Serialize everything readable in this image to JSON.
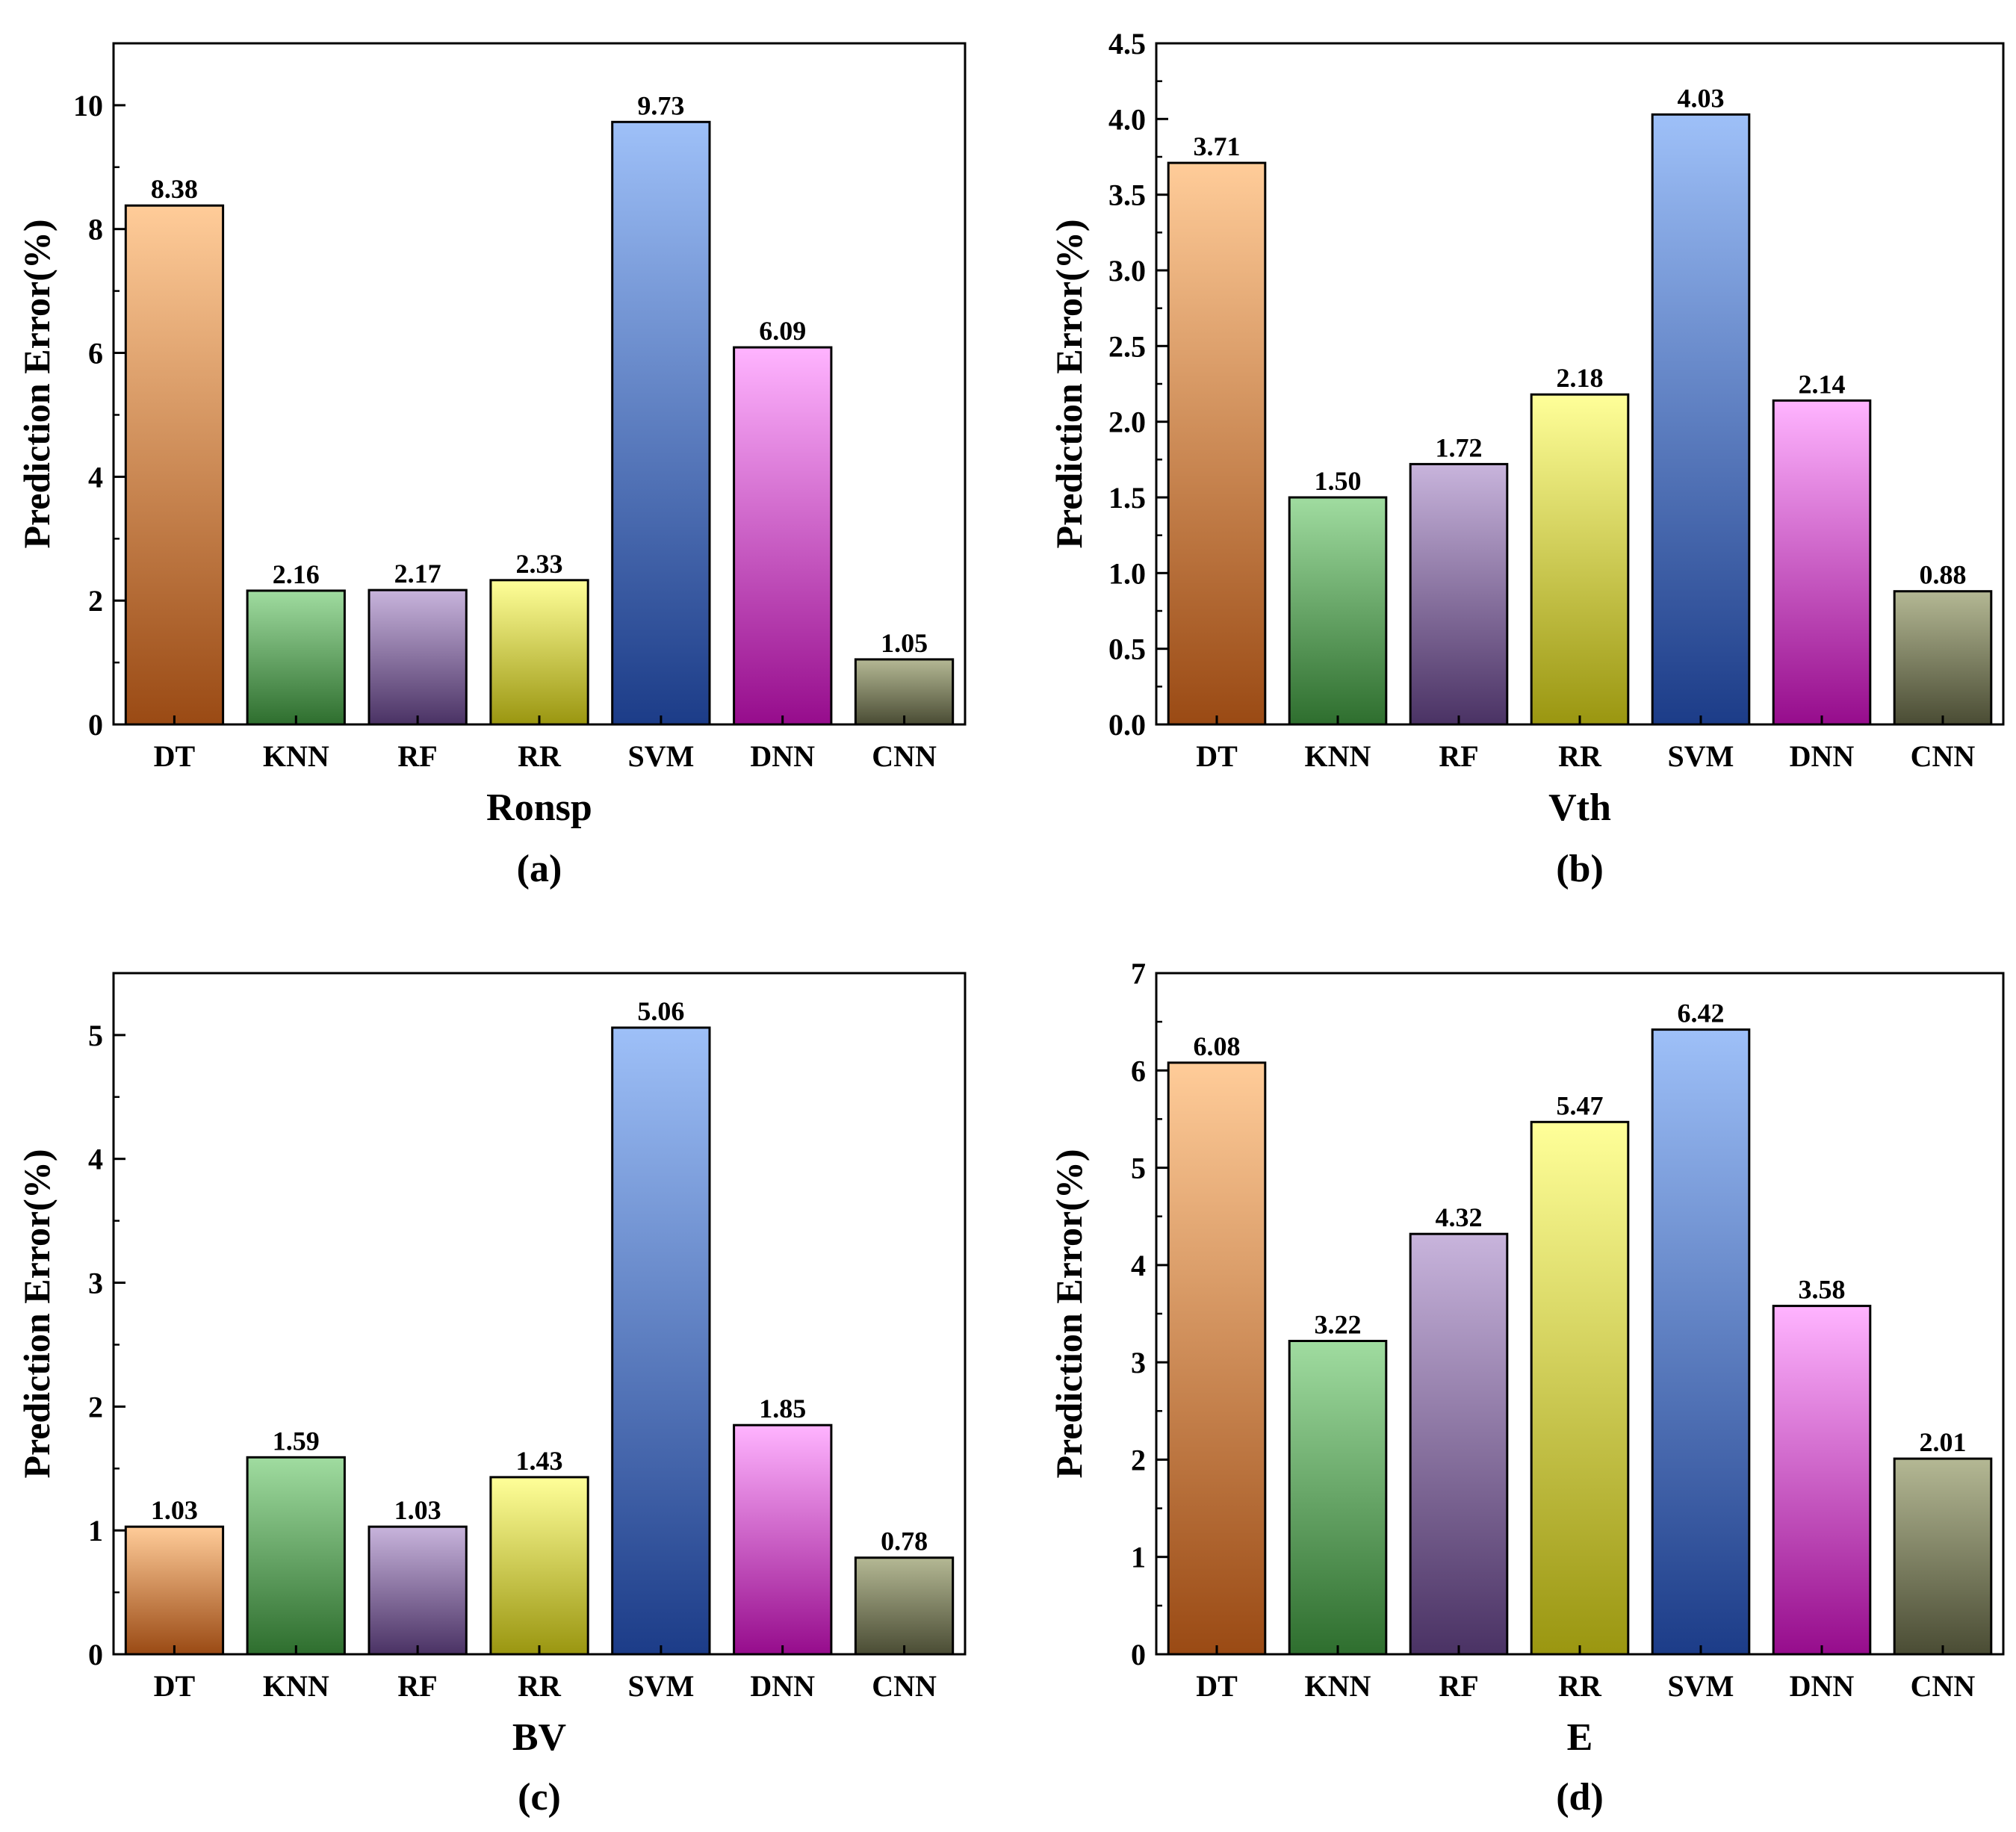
{
  "chart_data": [
    {
      "type": "bar",
      "panel_label": "(a)",
      "xlabel": "Ronsp",
      "ylabel": "Prediction Error(%)",
      "categories": [
        "DT",
        "KNN",
        "RF",
        "RR",
        "SVM",
        "DNN",
        "CNN"
      ],
      "values": [
        8.38,
        2.16,
        2.17,
        2.33,
        9.73,
        6.09,
        1.05
      ],
      "value_labels": [
        "8.38",
        "2.16",
        "2.17",
        "2.33",
        "9.73",
        "6.09",
        "1.05"
      ],
      "ylim": [
        0,
        11
      ],
      "yticks": [
        0,
        2,
        4,
        6,
        8,
        10
      ],
      "ytick_labels": [
        "0",
        "2",
        "4",
        "6",
        "8",
        "10"
      ],
      "minor_step": 1,
      "grid": false
    },
    {
      "type": "bar",
      "panel_label": "(b)",
      "xlabel": "Vth",
      "ylabel": "Prediction Error(%)",
      "categories": [
        "DT",
        "KNN",
        "RF",
        "RR",
        "SVM",
        "DNN",
        "CNN"
      ],
      "values": [
        3.71,
        1.5,
        1.72,
        2.18,
        4.03,
        2.14,
        0.88
      ],
      "value_labels": [
        "3.71",
        "1.50",
        "1.72",
        "2.18",
        "4.03",
        "2.14",
        "0.88"
      ],
      "ylim": [
        0,
        4.5
      ],
      "yticks": [
        0,
        0.5,
        1,
        1.5,
        2,
        2.5,
        3,
        3.5,
        4,
        4.5
      ],
      "ytick_labels": [
        "0.0",
        "0.5",
        "1.0",
        "1.5",
        "2.0",
        "2.5",
        "3.0",
        "3.5",
        "4.0",
        "4.5"
      ],
      "minor_step": 0.25,
      "grid": false
    },
    {
      "type": "bar",
      "panel_label": "(c)",
      "xlabel": "BV",
      "ylabel": "Prediction Error(%)",
      "categories": [
        "DT",
        "KNN",
        "RF",
        "RR",
        "SVM",
        "DNN",
        "CNN"
      ],
      "values": [
        1.03,
        1.59,
        1.03,
        1.43,
        5.06,
        1.85,
        0.78
      ],
      "value_labels": [
        "1.03",
        "1.59",
        "1.03",
        "1.43",
        "5.06",
        "1.85",
        "0.78"
      ],
      "ylim": [
        0,
        5.5
      ],
      "yticks": [
        0,
        1,
        2,
        3,
        4,
        5
      ],
      "ytick_labels": [
        "0",
        "1",
        "2",
        "3",
        "4",
        "5"
      ],
      "minor_step": 0.5,
      "grid": false
    },
    {
      "type": "bar",
      "panel_label": "(d)",
      "xlabel": "E",
      "ylabel": "Prediction Error(%)",
      "categories": [
        "DT",
        "KNN",
        "RF",
        "RR",
        "SVM",
        "DNN",
        "CNN"
      ],
      "values": [
        6.08,
        3.22,
        4.32,
        5.47,
        6.42,
        3.58,
        2.01
      ],
      "value_labels": [
        "6.08",
        "3.22",
        "4.32",
        "5.47",
        "6.42",
        "3.58",
        "2.01"
      ],
      "ylim": [
        0,
        7
      ],
      "yticks": [
        0,
        1,
        2,
        3,
        4,
        5,
        6,
        7
      ],
      "ytick_labels": [
        "0",
        "1",
        "2",
        "3",
        "4",
        "5",
        "6",
        "7"
      ],
      "minor_step": 0.5,
      "grid": false
    }
  ],
  "bar_colors": [
    {
      "top": "#ffcc99",
      "bottom": "#9a4a14"
    },
    {
      "top": "#a0dca0",
      "bottom": "#2e6e2e"
    },
    {
      "top": "#c8b4dc",
      "bottom": "#4a3264"
    },
    {
      "top": "#ffff99",
      "bottom": "#9a9610"
    },
    {
      "top": "#9ec0f8",
      "bottom": "#1c3c88"
    },
    {
      "top": "#ffb4ff",
      "bottom": "#960c8c"
    },
    {
      "top": "#b4b894",
      "bottom": "#4a4c34"
    }
  ]
}
